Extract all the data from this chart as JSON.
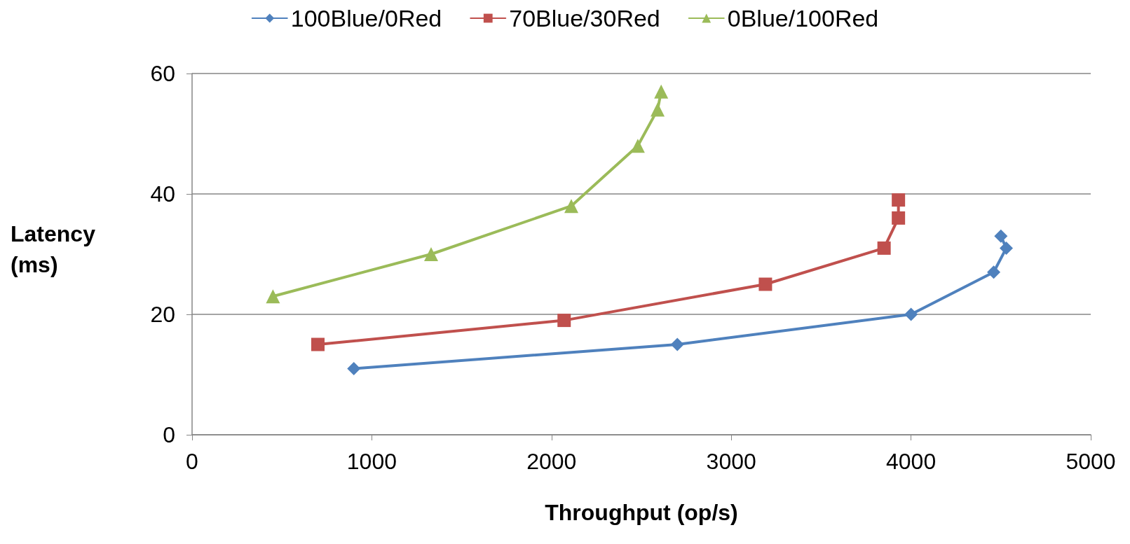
{
  "chart_data": {
    "type": "line",
    "xlabel": "Throughput (op/s)",
    "ylabel": "Latency\n(ms)",
    "xlim": [
      0,
      5000
    ],
    "xticks": [
      0,
      1000,
      2000,
      3000,
      4000,
      5000
    ],
    "ylim": [
      0,
      60
    ],
    "yticks": [
      0,
      20,
      40,
      60
    ],
    "grid": "y",
    "legend": "top",
    "line_style": "solid",
    "series": [
      {
        "name": "100Blue/0Red",
        "color": "#4f81bd",
        "marker": "diamond",
        "x": [
          900,
          2700,
          4000,
          4460,
          4530,
          4500
        ],
        "values": [
          11,
          15,
          20,
          27,
          31,
          33
        ]
      },
      {
        "name": "70Blue/30Red",
        "color": "#c0504d",
        "marker": "square",
        "x": [
          700,
          2070,
          3190,
          3850,
          3930,
          3930
        ],
        "values": [
          15,
          19,
          25,
          31,
          36,
          39
        ]
      },
      {
        "name": "0Blue/100Red",
        "color": "#9bbb59",
        "marker": "triangle",
        "x": [
          450,
          1330,
          2110,
          2480,
          2590,
          2610
        ],
        "values": [
          23,
          30,
          38,
          48,
          54,
          57
        ]
      }
    ]
  }
}
